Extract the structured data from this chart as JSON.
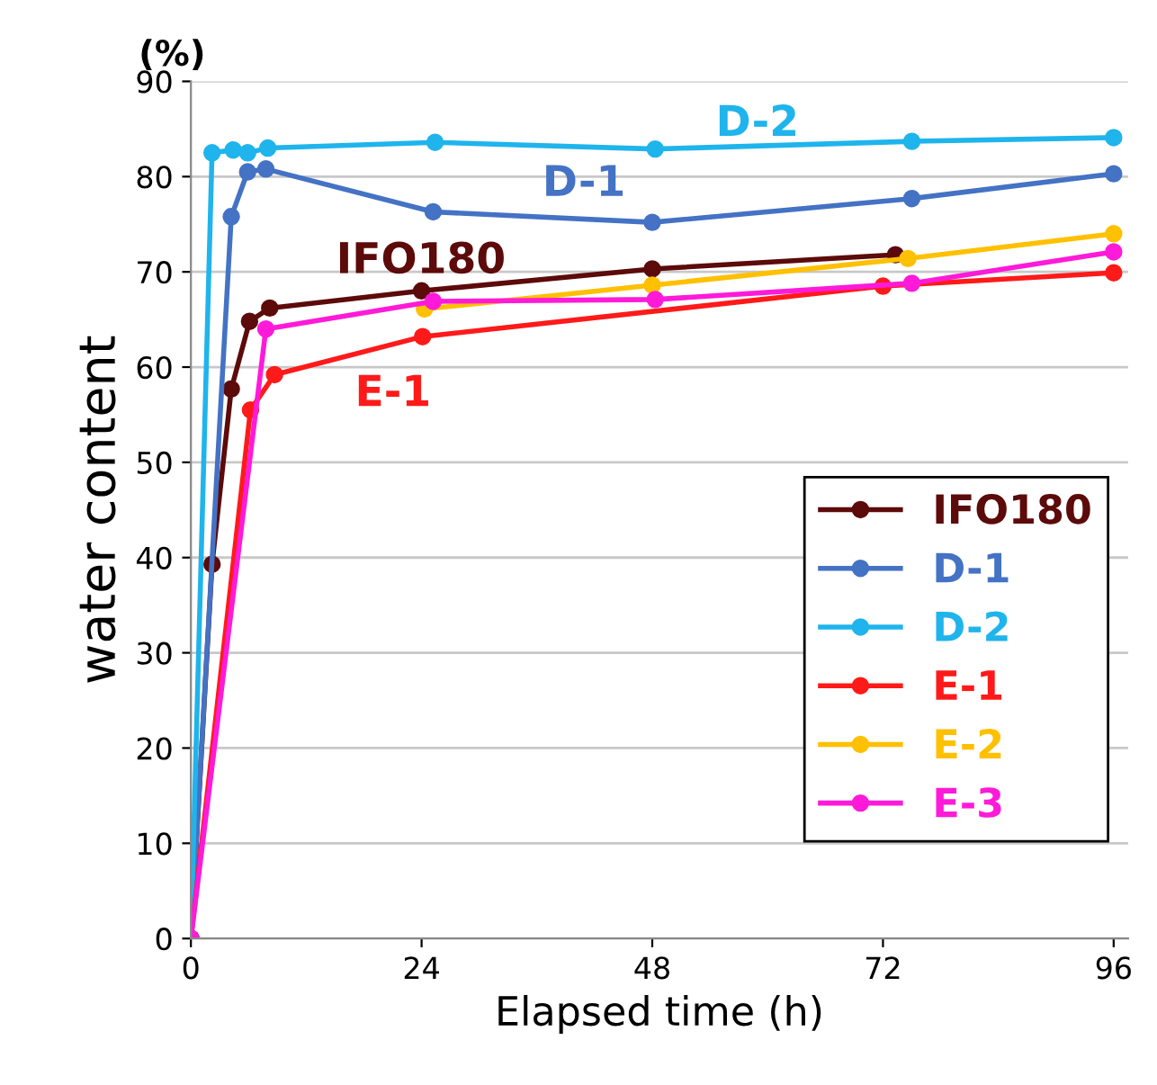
{
  "chart_data": {
    "type": "line",
    "xlabel": "Elapsed time (h)",
    "ylabel": "water content",
    "xlim": [
      0,
      97.5
    ],
    "ylim": [
      0,
      90
    ],
    "xticks": [
      0,
      24,
      48,
      72,
      96
    ],
    "yticks": [
      0,
      10,
      20,
      30,
      40,
      50,
      60,
      70,
      80,
      90
    ],
    "grid": "y",
    "legend": "bottom right",
    "marker": "circle",
    "line_style": "solid",
    "series": [
      {
        "name": "IFO180",
        "color": "#5c0a0a",
        "x": [
          0,
          2.2,
          4.2,
          6.1,
          8.2,
          24,
          48,
          73.3
        ],
        "values": [
          0,
          39.3,
          57.7,
          64.8,
          66.2,
          68,
          70.3,
          71.8
        ]
      },
      {
        "name": "D-1",
        "color": "#4472c4",
        "x": [
          0,
          4.2,
          5.9,
          7.8,
          25.2,
          48,
          75,
          96
        ],
        "values": [
          0,
          75.8,
          80.5,
          80.8,
          76.3,
          75.2,
          77.7,
          80.3
        ]
      },
      {
        "name": "D-2",
        "color": "#1fb4ec",
        "x": [
          0,
          2.2,
          4.4,
          5.9,
          8,
          25.4,
          48.3,
          75,
          96
        ],
        "values": [
          0,
          82.5,
          82.8,
          82.5,
          83,
          83.6,
          82.9,
          83.7,
          84.1
        ]
      },
      {
        "name": "E-1",
        "color": "#ff1a1a",
        "x": [
          0,
          6.2,
          8.7,
          24.1,
          72,
          96
        ],
        "values": [
          0,
          55.5,
          59.2,
          63.2,
          68.5,
          69.9
        ]
      },
      {
        "name": "E-2",
        "color": "#ffc000",
        "x": [
          24.3,
          48,
          74.6,
          96
        ],
        "values": [
          66.1,
          68.6,
          71.4,
          74
        ]
      },
      {
        "name": "E-3",
        "color": "#ff1ad9",
        "x": [
          0,
          7.8,
          25.2,
          48.3,
          75,
          96
        ],
        "values": [
          0,
          64,
          66.9,
          67.1,
          68.8,
          72.1
        ]
      }
    ],
    "annotations": [
      "(%)",
      "IFO180",
      "D-1",
      "D-2",
      "E-1"
    ]
  }
}
